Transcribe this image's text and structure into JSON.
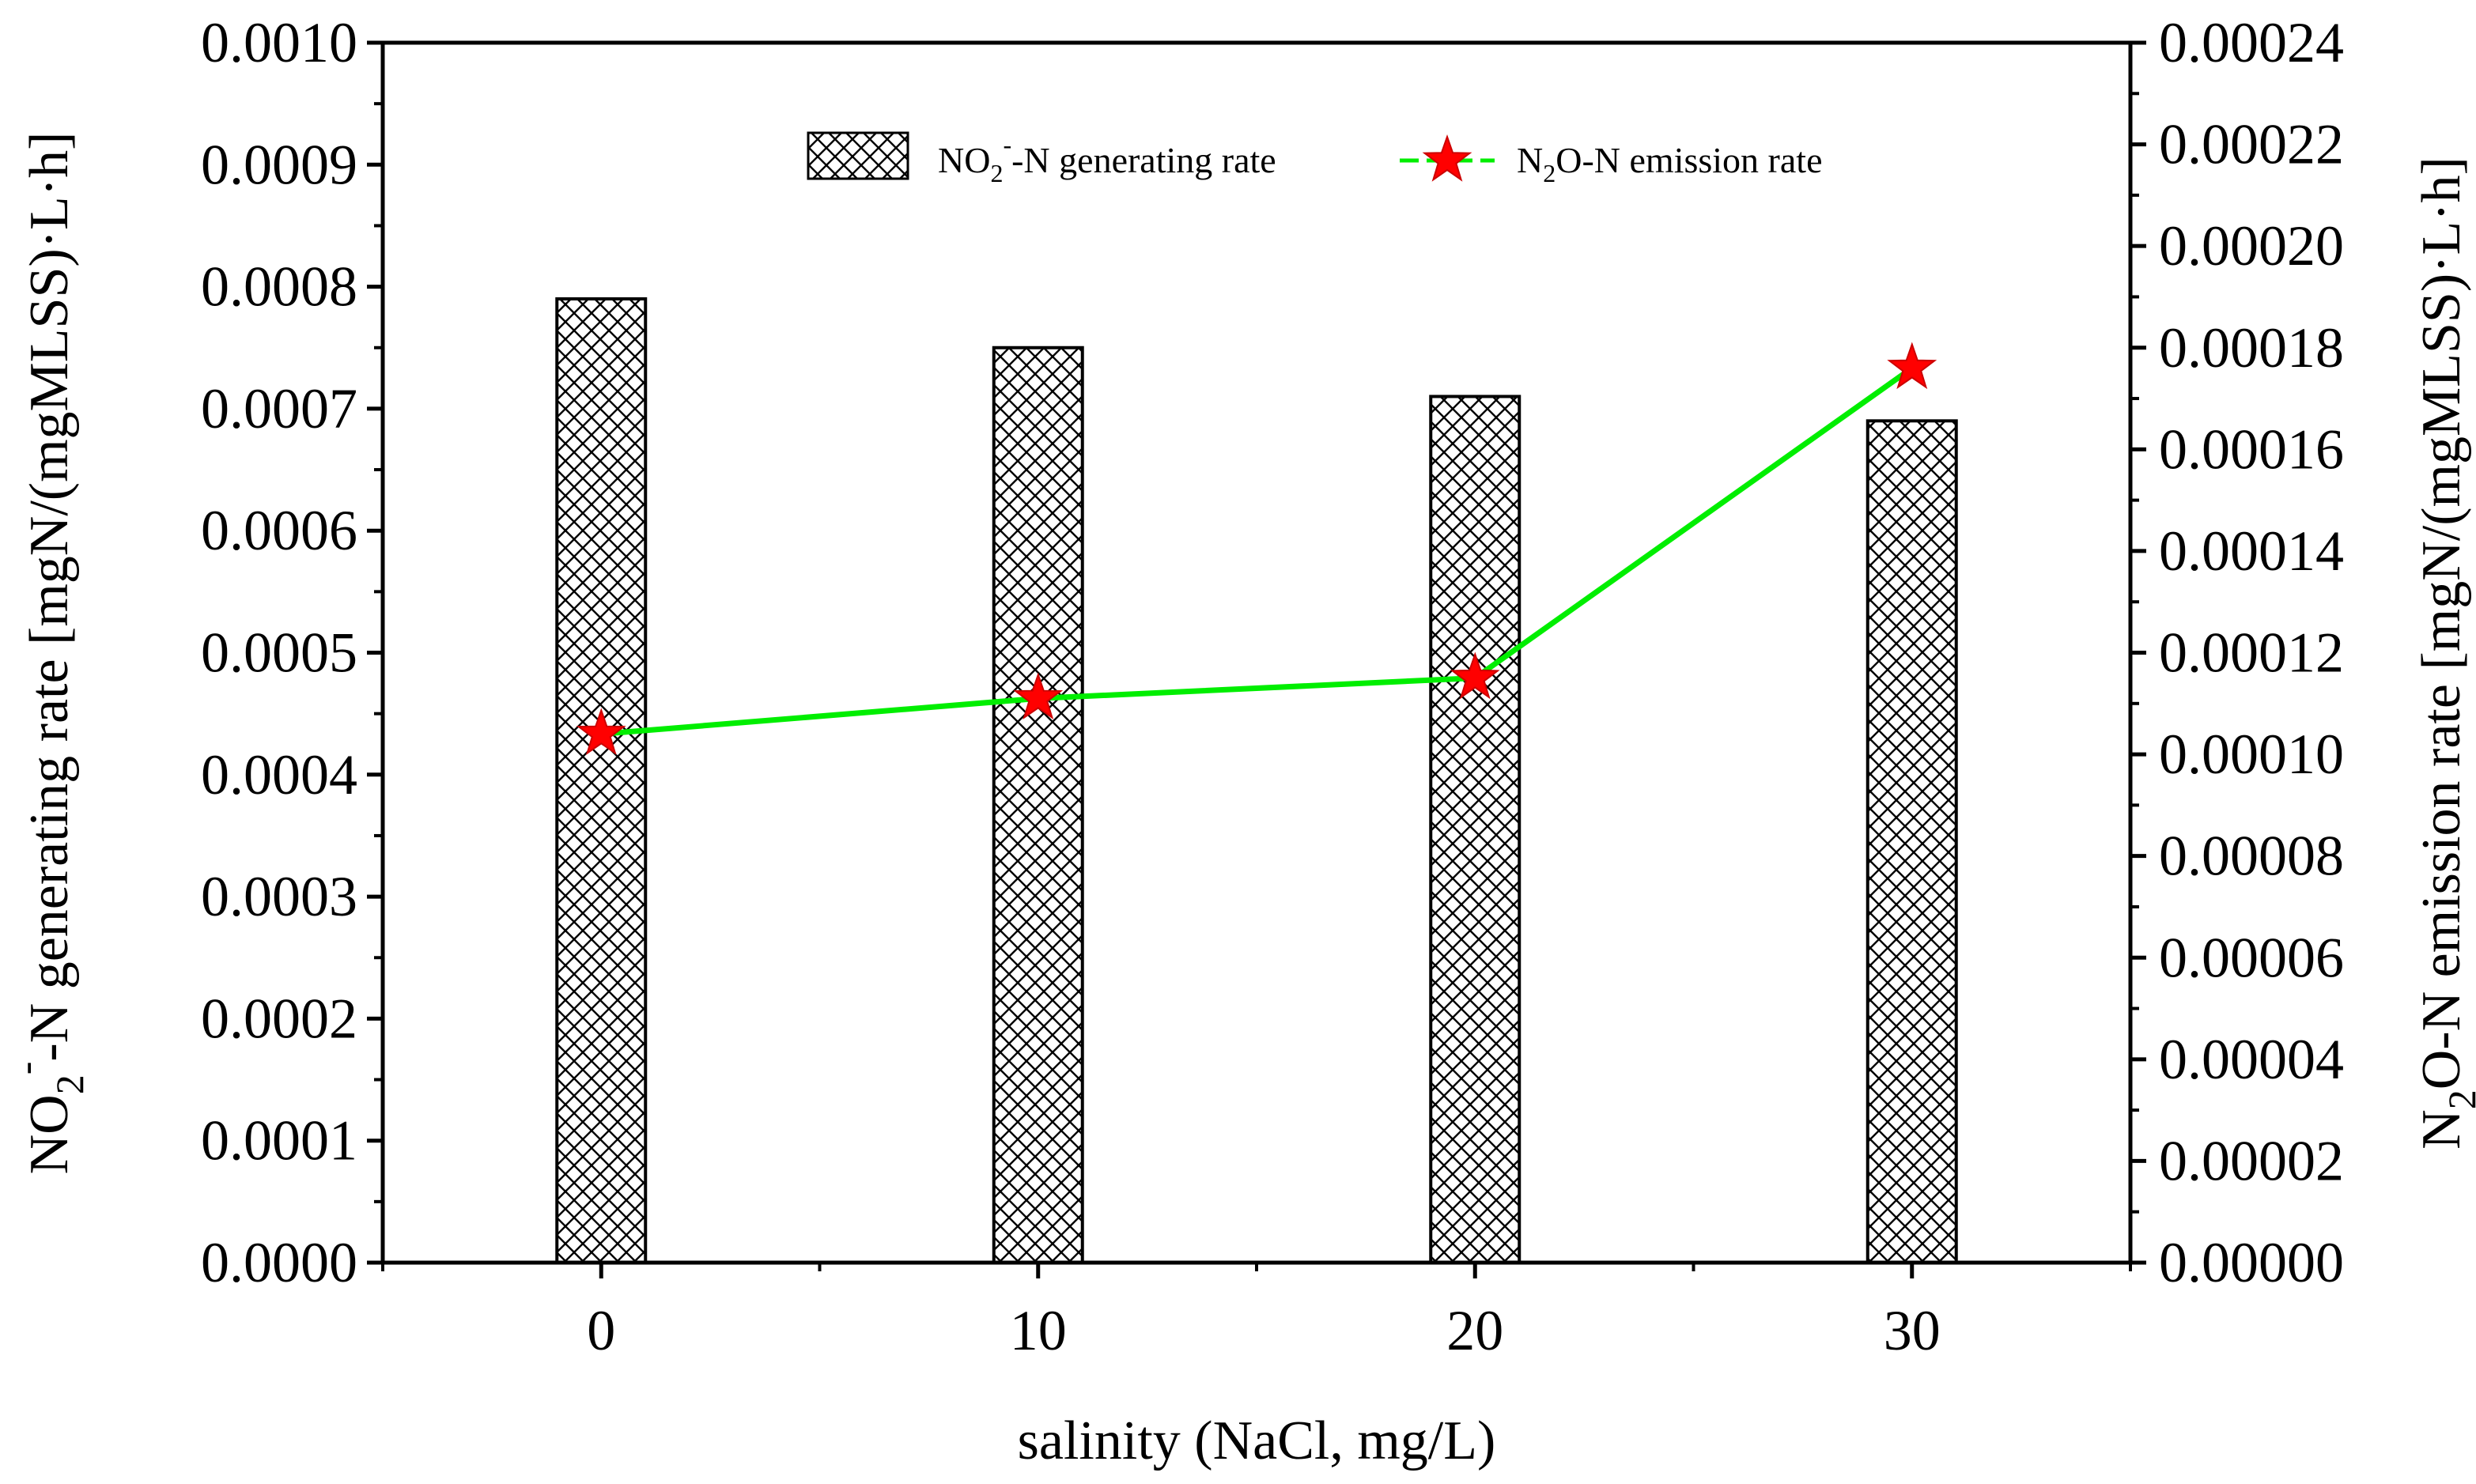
{
  "chart_data": {
    "type": "bar+line",
    "categories": [
      "0",
      "10",
      "20",
      "30"
    ],
    "x": [
      0,
      10,
      20,
      30
    ],
    "xlabel": "salinity (NaCl, mg/L)",
    "xlim": [
      -5,
      35
    ],
    "series": [
      {
        "name": "NO2--N generating rate",
        "type": "bar",
        "axis": "left",
        "pattern": "crosshatch",
        "values": [
          0.00079,
          0.00075,
          0.00071,
          0.00069
        ]
      },
      {
        "name": "N2O-N emission rate",
        "type": "line",
        "axis": "right",
        "marker": "star",
        "values": [
          0.000104,
          0.000111,
          0.000115,
          0.000176
        ]
      }
    ],
    "left_axis": {
      "ylim": [
        0,
        0.001
      ],
      "ticks": [
        "0.0000",
        "0.0001",
        "0.0002",
        "0.0003",
        "0.0004",
        "0.0005",
        "0.0006",
        "0.0007",
        "0.0008",
        "0.0009",
        "0.0010"
      ],
      "label_parts": [
        "NO",
        "2",
        "-",
        "-N  generating rate [mgN/(mgMLSS)·L·h]"
      ]
    },
    "right_axis": {
      "ylim": [
        0,
        0.00024
      ],
      "ticks": [
        "0.00000",
        "0.00002",
        "0.00004",
        "0.00006",
        "0.00008",
        "0.00010",
        "0.00012",
        "0.00014",
        "0.00016",
        "0.00018",
        "0.00020",
        "0.00022",
        "0.00024"
      ],
      "label_parts": [
        "N",
        "2",
        "O-N emission rate [mgN/(mgMLSS)·L·h]"
      ]
    },
    "legend": {
      "position": "top-center",
      "bar_parts": [
        "NO",
        "2",
        "-",
        "-N generating rate"
      ],
      "line_parts": [
        "N",
        "2",
        "O-N  emission rate"
      ]
    }
  },
  "colors": {
    "line": "#00ee00",
    "marker": "#ff0000",
    "axes": "#000000"
  }
}
